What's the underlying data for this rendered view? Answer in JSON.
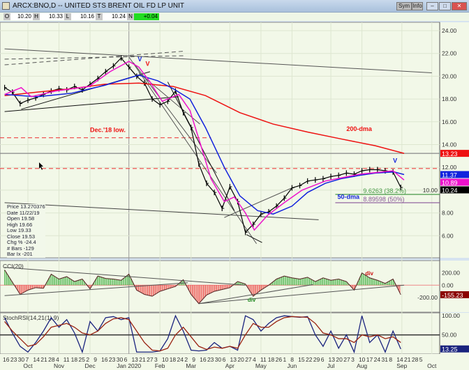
{
  "window": {
    "title": "ARCX:BNO,D -- UNITED STS BRENT OIL FD LP UNIT",
    "buttons": [
      "Sym",
      "Info"
    ]
  },
  "toolbar": {
    "O": "10.20",
    "H": "10.33",
    "L": "10.16",
    "T": "10.24",
    "N": "+0.04",
    "labels": [
      "O",
      "H",
      "L",
      "T",
      "N"
    ]
  },
  "infobox": [
    "Price 13.270376",
    "Date 11/22/19",
    "Open 19.58",
    "High 19.66",
    "Low 19.33",
    "Close 19.53",
    "Chg % -24.4",
    "# Bars -129",
    "Bar Ix -201"
  ],
  "chart_data": [
    {
      "type": "line",
      "panel": "price",
      "ylim": [
        4.4,
        25.5
      ],
      "yticks": [
        6,
        8,
        10,
        12,
        14,
        16,
        18,
        20,
        22,
        24
      ],
      "ytick_labels": [
        "6.00",
        "8.00",
        "10.00",
        "12.00",
        "14.00",
        "16.00",
        "18.00",
        "20.00",
        "22.00",
        "24.00"
      ],
      "series": [
        {
          "name": "price",
          "color": "#000000",
          "x": [
            "2019-09-16",
            "2019-09-23",
            "2019-09-30",
            "2019-10-07",
            "2019-10-14",
            "2019-10-21",
            "2019-10-28",
            "2019-11-04",
            "2019-11-11",
            "2019-11-18",
            "2019-11-25",
            "2019-12-02",
            "2019-12-09",
            "2019-12-16",
            "2019-12-23",
            "2019-12-30",
            "2020-01-06",
            "2020-01-13",
            "2020-01-20",
            "2020-01-27",
            "2020-02-03",
            "2020-02-10",
            "2020-02-17",
            "2020-02-24",
            "2020-03-02",
            "2020-03-09",
            "2020-03-16",
            "2020-03-23",
            "2020-03-30",
            "2020-04-06",
            "2020-04-13",
            "2020-04-20",
            "2020-04-27",
            "2020-05-04",
            "2020-05-11",
            "2020-05-18",
            "2020-05-25",
            "2020-06-01",
            "2020-06-08",
            "2020-06-15",
            "2020-06-22",
            "2020-06-29",
            "2020-07-06",
            "2020-07-13",
            "2020-07-20",
            "2020-07-27",
            "2020-08-03",
            "2020-08-10",
            "2020-08-17",
            "2020-08-24",
            "2020-08-31",
            "2020-09-07"
          ],
          "y": [
            19.0,
            18.6,
            17.6,
            17.9,
            18.1,
            18.4,
            18.7,
            18.9,
            18.8,
            19.1,
            18.8,
            19.3,
            19.8,
            20.4,
            20.9,
            21.6,
            20.8,
            20.0,
            19.4,
            18.0,
            17.5,
            17.8,
            18.7,
            16.8,
            15.5,
            12.3,
            10.6,
            9.8,
            8.4,
            10.3,
            9.0,
            6.3,
            7.0,
            7.9,
            8.1,
            8.6,
            9.3,
            10.2,
            10.4,
            10.8,
            10.9,
            11.0,
            11.2,
            11.3,
            11.5,
            11.4,
            11.7,
            11.8,
            11.8,
            11.7,
            11.6,
            10.24
          ]
        },
        {
          "name": "200-dma",
          "color": "#ee1111",
          "x": [
            "2019-09-16",
            "2019-10-15",
            "2019-11-15",
            "2019-12-15",
            "2020-01-15",
            "2020-02-15",
            "2020-03-15",
            "2020-04-15",
            "2020-05-15",
            "2020-06-15",
            "2020-07-15",
            "2020-08-15",
            "2020-09-10"
          ],
          "y": [
            18.3,
            18.6,
            18.9,
            19.3,
            19.4,
            19.1,
            18.3,
            16.8,
            15.8,
            15.1,
            14.5,
            13.9,
            13.23
          ]
        },
        {
          "name": "50-dma",
          "color": "#1122dd",
          "x": [
            "2019-09-16",
            "2019-10-15",
            "2019-11-15",
            "2019-12-15",
            "2020-01-15",
            "2020-02-01",
            "2020-02-15",
            "2020-03-01",
            "2020-03-15",
            "2020-04-01",
            "2020-04-15",
            "2020-05-01",
            "2020-05-15",
            "2020-06-01",
            "2020-06-15",
            "2020-07-01",
            "2020-07-15",
            "2020-08-01",
            "2020-08-15",
            "2020-09-01",
            "2020-09-10"
          ],
          "y": [
            18.4,
            18.2,
            18.5,
            19.2,
            20.1,
            19.6,
            18.9,
            18.0,
            15.5,
            12.0,
            9.5,
            8.2,
            7.9,
            8.6,
            9.8,
            10.6,
            11.0,
            11.3,
            11.5,
            11.6,
            11.37
          ]
        },
        {
          "color": "#ee11cc",
          "x": [
            "2019-09-16",
            "2019-10-01",
            "2019-10-10",
            "2019-11-01",
            "2019-12-01",
            "2019-12-20",
            "2020-01-06",
            "2020-01-15",
            "2020-01-25",
            "2020-02-05",
            "2020-02-20",
            "2020-03-01",
            "2020-03-10",
            "2020-03-20",
            "2020-04-01",
            "2020-04-10",
            "2020-04-20",
            "2020-04-28",
            "2020-05-10",
            "2020-05-25",
            "2020-06-10",
            "2020-07-01",
            "2020-08-01",
            "2020-08-31",
            "2020-09-10"
          ],
          "y": [
            18.4,
            19.0,
            18.2,
            18.7,
            19.1,
            20.4,
            21.3,
            20.8,
            19.5,
            17.8,
            18.4,
            17.0,
            14.2,
            11.0,
            9.0,
            9.4,
            8.0,
            6.5,
            7.8,
            8.9,
            10.0,
            10.8,
            11.4,
            11.7,
            10.89
          ]
        }
      ],
      "last_values": [
        {
          "value": "13.23",
          "color": "#ee1111"
        },
        {
          "value": "11.37",
          "color": "#1122dd"
        },
        {
          "value": "10.89",
          "color": "#ee11cc"
        },
        {
          "value": "10.24",
          "color": "#000000"
        }
      ],
      "hlines": [
        {
          "y": 13.23,
          "color": "#888888",
          "style": "solid"
        },
        {
          "y": 11.9,
          "color": "#ee4444",
          "style": "dashed"
        },
        {
          "y": 14.6,
          "color": "#ee4444",
          "style": "dashed",
          "to": "2020-03-20"
        },
        {
          "y": 9.6263,
          "color": "#449944",
          "style": "solid",
          "from": "2020-07-10",
          "label": "9.6263 (38.2%)"
        },
        {
          "y": 8.89598,
          "color": "#885599",
          "style": "solid",
          "from": "2020-07-10",
          "label": "8.89598 (50%)"
        }
      ],
      "trendlines": [
        {
          "p": [
            [
              "2019-09-16",
              22.4
            ],
            [
              "2020-10-05",
              20.3
            ]
          ],
          "color": "#555",
          "dash": false
        },
        {
          "p": [
            [
              "2019-09-16",
              21.0
            ],
            [
              "2020-02-25",
              22.2
            ]
          ],
          "color": "#555",
          "dash": true
        },
        {
          "p": [
            [
              "2019-09-16",
              21.5
            ],
            [
              "2020-02-25",
              21.8
            ]
          ],
          "color": "#555",
          "dash": true
        },
        {
          "p": [
            [
              "2019-09-16",
              16.9
            ],
            [
              "2020-02-20",
              18.2
            ]
          ],
          "color": "#111",
          "dash": false
        },
        {
          "p": [
            [
              "2019-10-01",
              17.1
            ],
            [
              "2020-01-25",
              20.4
            ]
          ],
          "color": "#111",
          "dash": false
        },
        {
          "p": [
            [
              "2019-09-16",
              8.9
            ],
            [
              "2020-06-25",
              7.4
            ]
          ],
          "color": "#444",
          "dash": false
        },
        {
          "p": [
            [
              "2020-01-06",
              21.7
            ],
            [
              "2020-04-30",
              5.3
            ]
          ],
          "color": "#555",
          "dash": false
        },
        {
          "p": [
            [
              "2020-01-10",
              21.2
            ],
            [
              "2020-03-25",
              11.5
            ]
          ],
          "color": "#555",
          "dash": false
        },
        {
          "p": [
            [
              "2020-02-10",
              19.5
            ],
            [
              "2020-04-10",
              8.2
            ]
          ],
          "color": "#111",
          "dash": false
        },
        {
          "p": [
            [
              "2020-01-15",
              20.3
            ],
            [
              "2020-03-10",
              15.8
            ]
          ],
          "color": "#555",
          "dash": false
        },
        {
          "p": [
            [
              "2020-04-01",
              7.6
            ],
            [
              "2020-06-01",
              10.2
            ]
          ],
          "color": "#555",
          "dash": false
        },
        {
          "p": [
            [
              "2020-04-21",
              6.1
            ],
            [
              "2020-05-05",
              5.4
            ]
          ],
          "color": "#111",
          "dash": false
        }
      ],
      "annotations": [
        {
          "text": "Dec.'18 low.",
          "x": "2019-12-02",
          "y": 15.1,
          "color": "#ee1111"
        },
        {
          "text": "200-dma",
          "x": "2020-07-20",
          "y": 15.2,
          "color": "#ee1111"
        },
        {
          "text": "50-dma",
          "x": "2020-07-22",
          "y": 9.6,
          "color": "#1122dd"
        },
        {
          "text": "V",
          "x": "2020-01-14",
          "y": 21.3,
          "color": "#1122dd"
        },
        {
          "text": "V",
          "x": "2020-01-21",
          "y": 20.9,
          "color": "#ee1111"
        },
        {
          "text": "V",
          "x": "2020-08-31",
          "y": 12.4,
          "color": "#1122dd"
        }
      ]
    },
    {
      "type": "bar",
      "panel": "CCI",
      "title": "CCI(20)",
      "ylim": [
        -310,
        300
      ],
      "yticks": [
        200,
        0,
        -200
      ],
      "ytick_labels": [
        "200.00",
        "0.00",
        "-200.00"
      ],
      "last_value": "-155.23",
      "last_color": "#8b0000",
      "x": [
        "2019-09-16",
        "2019-09-23",
        "2019-09-30",
        "2019-10-07",
        "2019-10-14",
        "2019-10-21",
        "2019-10-28",
        "2019-11-04",
        "2019-11-11",
        "2019-11-18",
        "2019-11-25",
        "2019-12-02",
        "2019-12-09",
        "2019-12-16",
        "2019-12-23",
        "2019-12-30",
        "2020-01-06",
        "2020-01-13",
        "2020-01-20",
        "2020-01-27",
        "2020-02-03",
        "2020-02-10",
        "2020-02-17",
        "2020-02-24",
        "2020-03-02",
        "2020-03-09",
        "2020-03-16",
        "2020-03-23",
        "2020-03-30",
        "2020-04-06",
        "2020-04-13",
        "2020-04-20",
        "2020-04-27",
        "2020-05-04",
        "2020-05-11",
        "2020-05-18",
        "2020-05-25",
        "2020-06-01",
        "2020-06-08",
        "2020-06-15",
        "2020-06-22",
        "2020-06-29",
        "2020-07-06",
        "2020-07-13",
        "2020-07-20",
        "2020-07-27",
        "2020-08-03",
        "2020-08-10",
        "2020-08-17",
        "2020-08-24",
        "2020-08-31",
        "2020-09-07"
      ],
      "values": [
        250,
        50,
        -150,
        -80,
        -40,
        -50,
        180,
        100,
        140,
        60,
        100,
        -60,
        150,
        110,
        100,
        80,
        180,
        -80,
        -150,
        -180,
        -100,
        -60,
        -20,
        90,
        -150,
        -300,
        -160,
        -100,
        -70,
        -40,
        60,
        20,
        -180,
        -80,
        0,
        100,
        150,
        120,
        100,
        130,
        60,
        120,
        80,
        100,
        60,
        -80,
        200,
        120,
        80,
        30,
        100,
        -155
      ],
      "trendlines": [
        [
          [
            "2019-09-16",
            290
          ],
          [
            "2020-04-20",
            0
          ]
        ],
        [
          [
            "2019-09-16",
            -170
          ],
          [
            "2020-02-28",
            40
          ]
        ],
        [
          [
            "2020-03-09",
            -300
          ],
          [
            "2020-09-10",
            0
          ]
        ],
        [
          [
            "2020-03-09",
            -300
          ],
          [
            "2020-06-20",
            10
          ]
        ]
      ],
      "annotations": [
        {
          "text": "div",
          "x": "2020-04-22",
          "y": -270,
          "color": "#228822"
        },
        {
          "text": "div",
          "x": "2020-08-06",
          "y": 160,
          "color": "#cc1111"
        }
      ]
    },
    {
      "type": "line",
      "panel": "StochRSI",
      "title": "StochRSI(14,21(1),9)",
      "ylim": [
        0,
        100
      ],
      "yticks": [
        100,
        50
      ],
      "ytick_labels": [
        "100.00",
        "50.00"
      ],
      "last_value": "13.25",
      "last_color": "#1a237e",
      "x": [
        "2019-09-16",
        "2019-09-23",
        "2019-09-30",
        "2019-10-07",
        "2019-10-14",
        "2019-10-21",
        "2019-10-28",
        "2019-11-04",
        "2019-11-11",
        "2019-11-18",
        "2019-11-25",
        "2019-12-02",
        "2019-12-09",
        "2019-12-16",
        "2019-12-23",
        "2019-12-30",
        "2020-01-06",
        "2020-01-13",
        "2020-01-20",
        "2020-01-27",
        "2020-02-03",
        "2020-02-10",
        "2020-02-17",
        "2020-02-24",
        "2020-03-02",
        "2020-03-09",
        "2020-03-16",
        "2020-03-23",
        "2020-03-30",
        "2020-04-06",
        "2020-04-13",
        "2020-04-20",
        "2020-04-27",
        "2020-05-04",
        "2020-05-11",
        "2020-05-18",
        "2020-05-25",
        "2020-06-01",
        "2020-06-08",
        "2020-06-15",
        "2020-06-22",
        "2020-06-29",
        "2020-07-06",
        "2020-07-13",
        "2020-07-20",
        "2020-07-27",
        "2020-08-03",
        "2020-08-10",
        "2020-08-17",
        "2020-08-24",
        "2020-08-31",
        "2020-09-07"
      ],
      "series": [
        {
          "color": "#1a237e",
          "values": [
            95,
            55,
            20,
            5,
            30,
            60,
            95,
            70,
            90,
            55,
            5,
            85,
            60,
            95,
            98,
            90,
            95,
            5,
            5,
            5,
            8,
            40,
            100,
            60,
            10,
            8,
            10,
            30,
            15,
            20,
            10,
            100,
            90,
            60,
            80,
            95,
            100,
            98,
            96,
            98,
            50,
            20,
            60,
            15,
            50,
            5,
            100,
            30,
            50,
            5,
            60,
            13
          ]
        },
        {
          "color": "#992211",
          "values": [
            85,
            60,
            40,
            20,
            25,
            45,
            70,
            75,
            80,
            70,
            55,
            50,
            60,
            80,
            92,
            95,
            90,
            60,
            30,
            10,
            8,
            15,
            50,
            70,
            45,
            20,
            12,
            18,
            15,
            20,
            15,
            50,
            80,
            70,
            70,
            85,
            95,
            98,
            97,
            96,
            80,
            55,
            50,
            40,
            40,
            30,
            50,
            45,
            50,
            40,
            45,
            30
          ]
        }
      ]
    },
    {
      "type": "axis",
      "panel": "x",
      "ticks": [
        "16",
        "23",
        "30",
        "7",
        "14",
        "21",
        "28",
        "4",
        "11",
        "18",
        "25",
        "2",
        "9",
        "16",
        "23",
        "30",
        "6",
        "13",
        "21",
        "27",
        "3",
        "10",
        "18",
        "24",
        "2",
        "9",
        "16",
        "23",
        "30",
        "6",
        "13",
        "20",
        "27",
        "4",
        "11",
        "18",
        "26",
        "1",
        "8",
        "15",
        "22",
        "29",
        "6",
        "13",
        "20",
        "27",
        "3",
        "10",
        "17",
        "24",
        "31",
        "8",
        "14",
        "21",
        "28",
        "5"
      ],
      "months": [
        {
          "label": "Oct",
          "date": "2019-10-07"
        },
        {
          "label": "Nov",
          "date": "2019-11-04"
        },
        {
          "label": "Dec",
          "date": "2019-12-02"
        },
        {
          "label": "Jan 2020",
          "date": "2020-01-06"
        },
        {
          "label": "Feb",
          "date": "2020-02-03"
        },
        {
          "label": "Mar",
          "date": "2020-03-02"
        },
        {
          "label": "Apr",
          "date": "2020-04-06"
        },
        {
          "label": "May",
          "date": "2020-05-04"
        },
        {
          "label": "Jun",
          "date": "2020-06-01"
        },
        {
          "label": "Jul",
          "date": "2020-07-06"
        },
        {
          "label": "Aug",
          "date": "2020-08-03"
        },
        {
          "label": "Sep",
          "date": "2020-09-08"
        },
        {
          "label": "Oct",
          "date": "2020-10-05"
        }
      ]
    }
  ]
}
